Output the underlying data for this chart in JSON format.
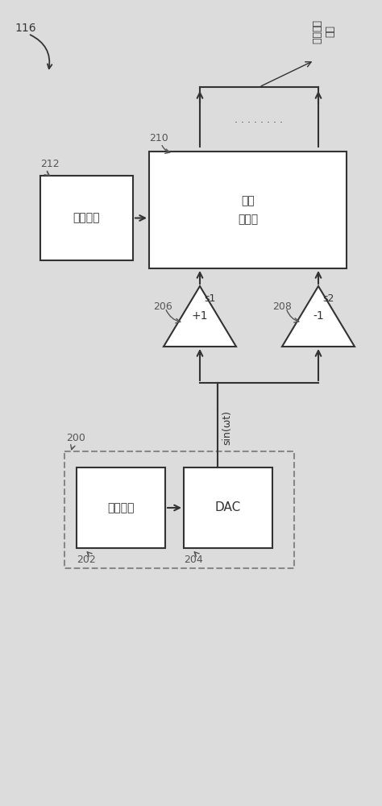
{
  "bg_color": "#dcdcdc",
  "box_color": "#ffffff",
  "box_edge": "#333333",
  "line_color": "#333333",
  "dashed_color": "#888888",
  "label_116": "116",
  "label_200": "200",
  "label_202": "202",
  "label_204": "204",
  "label_206": "206",
  "label_208": "208",
  "label_210": "210",
  "label_212": "212",
  "text_202": "正弦波表",
  "text_204": "DAC",
  "text_206": "+1",
  "text_208": "-1",
  "text_210": "驱动\n复用器",
  "text_212": "编码矩阵",
  "text_sin": "sin(ωt)",
  "text_s1": "s1",
  "text_s2": "s2",
  "text_dots": ". . . . . . . .",
  "text_top": "多个\n激励信号"
}
